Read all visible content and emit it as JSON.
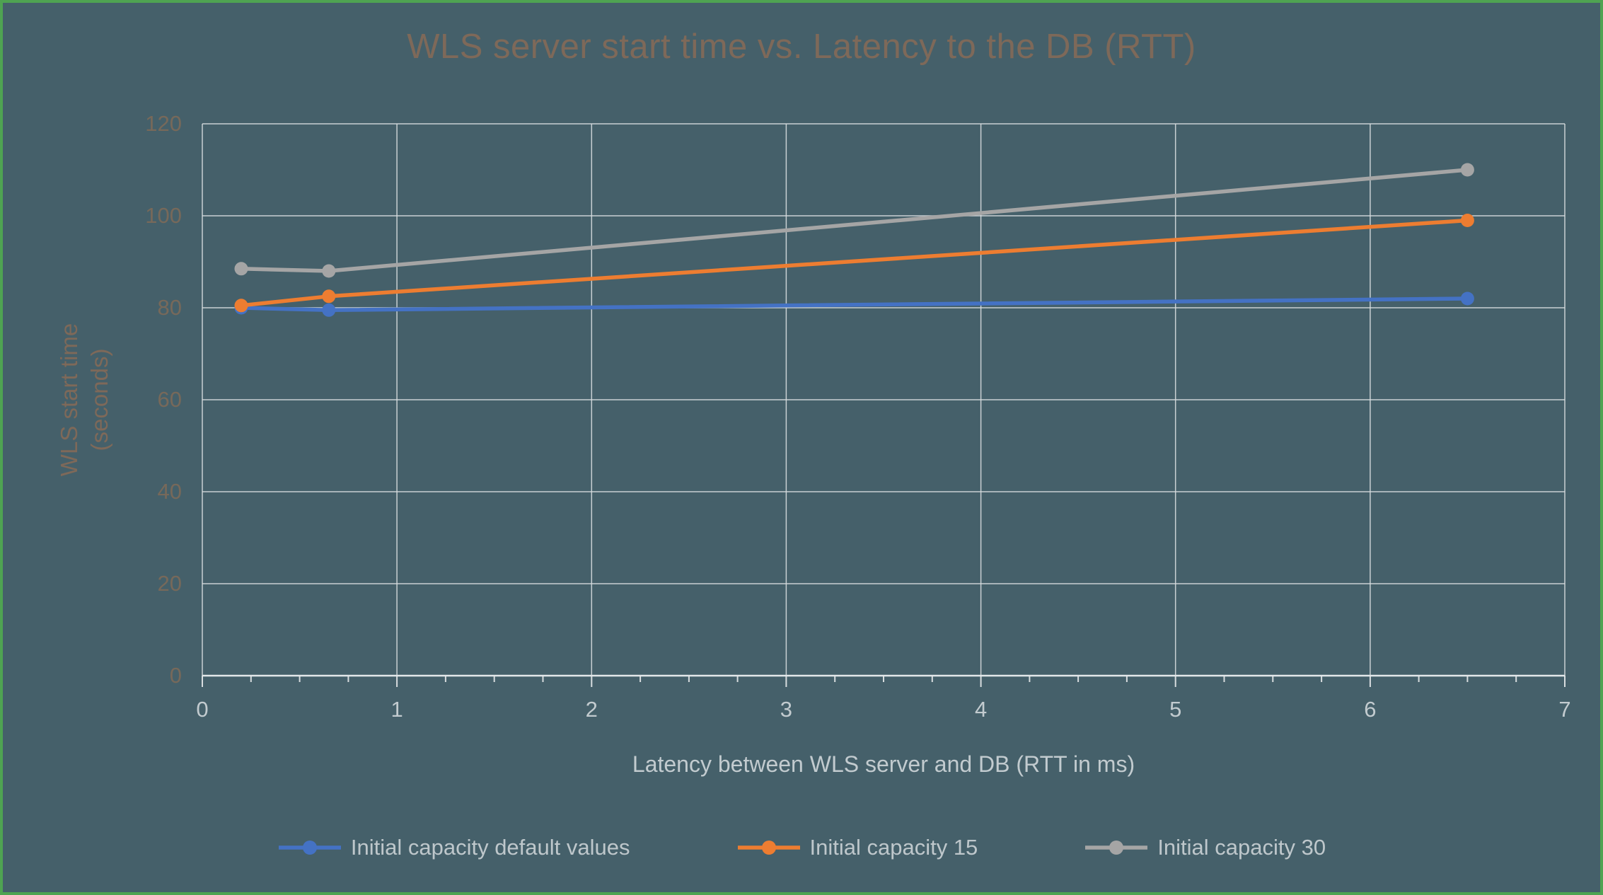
{
  "chart": {
    "title": "WLS server start time vs. Latency to the DB (RTT)",
    "x_axis_title": "Latency between WLS server and DB (RTT in ms)",
    "y_axis_title_line1": "WLS start time",
    "y_axis_title_line2": "(seconds)"
  },
  "chart_data": {
    "type": "line",
    "title": "WLS server start time vs. Latency to the DB (RTT)",
    "xlabel": "Latency between WLS server and DB (RTT in ms)",
    "ylabel": "WLS start time (seconds)",
    "xlim": [
      0,
      7
    ],
    "ylim": [
      0,
      120
    ],
    "x_ticks": [
      0,
      1,
      2,
      3,
      4,
      5,
      6,
      7
    ],
    "y_ticks": [
      0,
      20,
      40,
      60,
      80,
      100,
      120
    ],
    "grid": true,
    "legend_position": "bottom",
    "x": [
      0.2,
      0.65,
      6.5
    ],
    "series": [
      {
        "name": "Initial capacity default values",
        "color": "#4472C4",
        "values": [
          80,
          79.5,
          82
        ]
      },
      {
        "name": "Initial capacity 15",
        "color": "#ED7D31",
        "values": [
          80.5,
          82.5,
          99
        ]
      },
      {
        "name": "Initial capacity 30",
        "color": "#A5A5A5",
        "values": [
          88.5,
          88,
          110
        ]
      }
    ]
  },
  "colors": {
    "background": "#45606A",
    "border": "#4FA352",
    "title_text": "#7E6959",
    "y_tick_text": "#77695A",
    "x_tick_text": "#C2CBCF",
    "legend_text": "#BEC7CB",
    "gridline": "#D8DDDF",
    "series_blue": "#4472C4",
    "series_orange": "#ED7D31",
    "series_gray": "#A5A5A5"
  }
}
